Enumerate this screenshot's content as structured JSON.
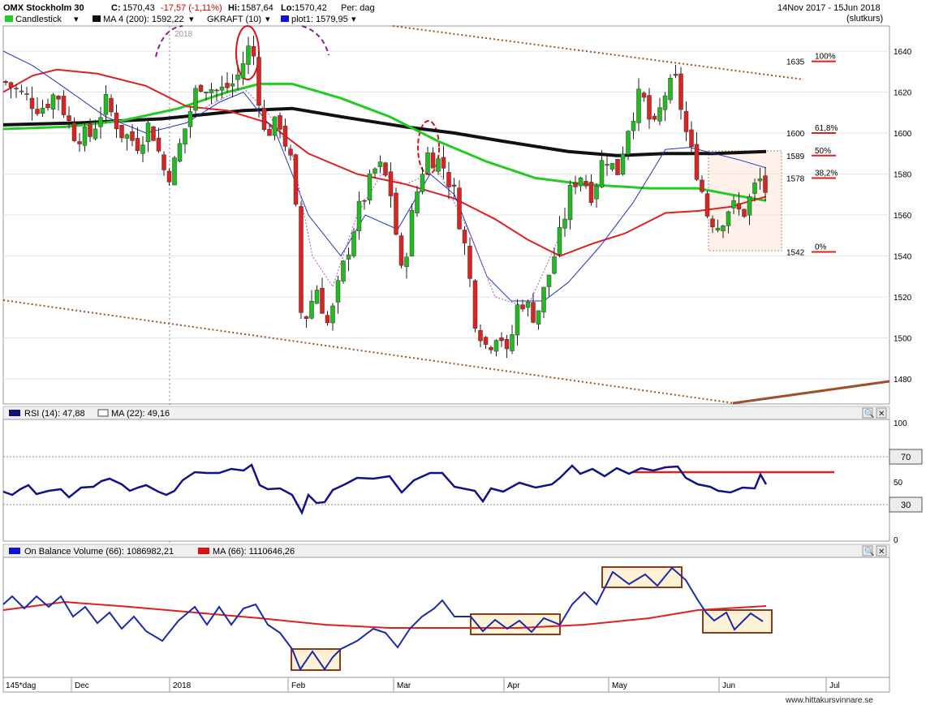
{
  "header": {
    "title": "OMX Stockholm 30",
    "close_label": "C:",
    "close_value": "1570,43",
    "change": "-17,57 (-1,11%)",
    "hi_label": "Hi:",
    "hi_value": "1587,64",
    "lo_label": "Lo:",
    "lo_value": "1570,42",
    "period": "Per: dag",
    "date_range": "14Nov 2017 - 15Jun 2018",
    "close_note": "(slutkurs)"
  },
  "legend": {
    "candlestick": "Candlestick",
    "ma": "MA 4 (200): 1592,22",
    "gkraft": "GKRAFT (10)",
    "plot1": "plot1: 1579,95"
  },
  "year_marker": "2018",
  "colors": {
    "up": "#22bb22",
    "down": "#dd2222",
    "ma200": "#111111",
    "ma_green": "#22cc22",
    "ma_red": "#e02020",
    "ma_blue": "#2233cc",
    "trend": "#a0502a"
  },
  "fib": [
    {
      "value": 1635,
      "label": "1635",
      "pct": "100%"
    },
    {
      "value": 1600,
      "label": "1600",
      "pct": "61,8%"
    },
    {
      "value": 1589,
      "label": "1589",
      "pct": "50%"
    },
    {
      "value": 1578,
      "label": "1578",
      "pct": "38,2%"
    },
    {
      "value": 1542,
      "label": "1542",
      "pct": "0%"
    }
  ],
  "rsi_panel": {
    "label": "RSI (14): 47,88",
    "ma_label": "MA (22): 49,16",
    "ticks": [
      "100",
      "70",
      "50",
      "30",
      "0"
    ],
    "level_70": "70",
    "level_30": "30"
  },
  "obv_panel": {
    "label": "On Balance Volume (66): 1086982,21",
    "ma_label": "MA (66): 1110646,26"
  },
  "x_axis": {
    "period_label": "145*dag",
    "months": [
      "Dec",
      "2018",
      "Feb",
      "Mar",
      "Apr",
      "May",
      "Jun",
      "Jul"
    ]
  },
  "footer": "www.hittakursvinnare.se",
  "chart_data": [
    {
      "type": "candlestick",
      "title": "OMX Stockholm 30",
      "ylim": [
        1465,
        1650
      ],
      "y_ticks": [
        1480,
        1500,
        1520,
        1540,
        1560,
        1580,
        1600,
        1620,
        1640
      ],
      "x": [
        "Dec",
        "2018",
        "Feb",
        "Mar",
        "Apr",
        "May",
        "Jun",
        "Jul"
      ],
      "last": {
        "close": 1570.43,
        "high": 1587.64,
        "low": 1570.42
      },
      "ma_200": 1592.22,
      "plot1": 1579.95
    },
    {
      "type": "line",
      "title": "RSI (14)",
      "ylim": [
        0,
        100
      ],
      "levels": [
        30,
        70
      ],
      "last": 47.88,
      "ma_22": 49.16
    },
    {
      "type": "line",
      "title": "On Balance Volume (66)",
      "last": 1086982.21,
      "ma_66": 1110646.26
    }
  ]
}
